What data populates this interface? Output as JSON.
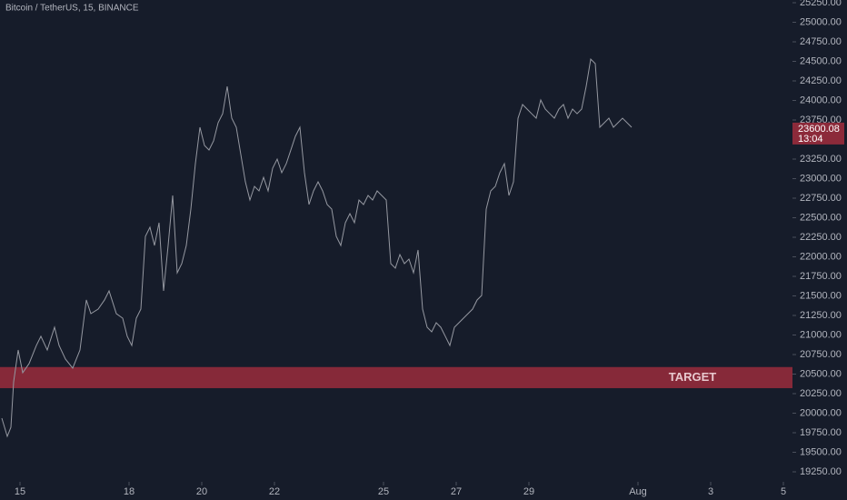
{
  "chart_data": {
    "type": "line",
    "title": "Bitcoin / TetherUS, 15, BINANCE",
    "color": "#9598a1",
    "x": [
      14.5,
      14.65,
      14.75,
      14.825,
      14.95,
      15.075,
      15.25,
      15.45,
      15.575,
      15.75,
      15.95,
      16.075,
      16.25,
      16.45,
      16.65,
      16.825,
      16.95,
      17.15,
      17.325,
      17.45,
      17.65,
      17.825,
      17.95,
      18.075,
      18.2,
      18.325,
      18.45,
      18.575,
      18.7,
      18.825,
      18.95,
      19.075,
      19.2,
      19.325,
      19.45,
      19.575,
      19.7,
      19.825,
      19.95,
      20.075,
      20.2,
      20.325,
      20.45,
      20.575,
      20.7,
      20.825,
      20.95,
      21.075,
      21.2,
      21.325,
      21.45,
      21.575,
      21.7,
      21.825,
      21.95,
      22.075,
      22.2,
      22.325,
      22.45,
      22.575,
      22.7,
      22.825,
      22.95,
      23.075,
      23.2,
      23.325,
      23.45,
      23.575,
      23.7,
      23.825,
      23.95,
      24.075,
      24.2,
      24.325,
      24.45,
      24.575,
      24.7,
      24.825,
      24.95,
      25.075,
      25.2,
      25.325,
      25.45,
      25.575,
      25.7,
      25.825,
      25.95,
      26.075,
      26.2,
      26.325,
      26.45,
      26.575,
      26.7,
      26.825,
      26.95,
      27.075,
      27.2,
      27.325,
      27.45,
      27.575,
      27.7,
      27.825,
      27.95,
      28.075,
      28.2,
      28.325,
      28.45,
      28.575,
      28.7,
      28.825,
      28.95,
      29.075,
      29.2,
      29.325,
      29.45,
      29.575,
      29.7,
      29.825,
      29.95,
      30.075,
      30.2,
      30.325,
      30.45,
      30.575,
      30.7,
      30.825,
      30.95,
      31.075,
      31.2,
      31.325,
      31.45,
      31.575,
      31.7,
      31.825
    ],
    "values": [
      19936,
      19703,
      19820,
      20401,
      20808,
      20517,
      20634,
      20866,
      20983,
      20808,
      21099,
      20866,
      20692,
      20576,
      20808,
      21448,
      21273,
      21331,
      21448,
      21564,
      21273,
      21215,
      20983,
      20866,
      21215,
      21331,
      22262,
      22378,
      22145,
      22436,
      21564,
      22145,
      22785,
      21796,
      21913,
      22145,
      22610,
      23192,
      23657,
      23424,
      23366,
      23483,
      23715,
      23831,
      24180,
      23773,
      23657,
      23308,
      22959,
      22727,
      22901,
      22843,
      23017,
      22843,
      23134,
      23250,
      23076,
      23192,
      23366,
      23541,
      23657,
      23076,
      22669,
      22843,
      22959,
      22843,
      22669,
      22610,
      22262,
      22145,
      22436,
      22552,
      22436,
      22727,
      22669,
      22785,
      22727,
      22843,
      22785,
      22727,
      21913,
      21855,
      22029,
      21913,
      21971,
      21796,
      22087,
      21331,
      21099,
      21041,
      21157,
      21099,
      20983,
      20866,
      21099,
      21157,
      21215,
      21273,
      21331,
      21448,
      21506,
      22610,
      22843,
      22901,
      23076,
      23192,
      22785,
      22959,
      23773,
      23948,
      23890,
      23831,
      23773,
      24006,
      23890,
      23831,
      23773,
      23890,
      23948,
      23773,
      23890,
      23831,
      23890,
      24180,
      24529,
      24471,
      23657,
      23715,
      23773,
      23657,
      23715,
      23773,
      23715,
      23657
    ],
    "xlim": [
      14.45,
      36.25
    ],
    "xticks": [
      15,
      18,
      20,
      22,
      25,
      27,
      29,
      {
        "value": 32,
        "label": "Aug"
      },
      {
        "value": 34,
        "label": "3"
      },
      {
        "value": 36,
        "label": "5"
      }
    ],
    "ylim": [
      19122,
      25285
    ],
    "yticks": [
      {
        "value": 19250,
        "label": "19250.00"
      },
      {
        "value": 19500,
        "label": "19500.00"
      },
      {
        "value": 19750,
        "label": "19750.00"
      },
      {
        "value": 20000,
        "label": "20000.00"
      },
      {
        "value": 20250,
        "label": "20250.00"
      },
      {
        "value": 20500,
        "label": "20500.00"
      },
      {
        "value": 20750,
        "label": "20750.00"
      },
      {
        "value": 21000,
        "label": "21000.00"
      },
      {
        "value": 21250,
        "label": "21250.00"
      },
      {
        "value": 21500,
        "label": "21500.00"
      },
      {
        "value": 21750,
        "label": "21750.00"
      },
      {
        "value": 22000,
        "label": "22000.00"
      },
      {
        "value": 22250,
        "label": "22250.00"
      },
      {
        "value": 22500,
        "label": "22500.00"
      },
      {
        "value": 22750,
        "label": "22750.00"
      },
      {
        "value": 23000,
        "label": "23000.00"
      },
      {
        "value": 23250,
        "label": "23250.00"
      },
      {
        "value": 23500,
        "label": "23500.00"
      },
      {
        "value": 23750,
        "label": "23750.00"
      },
      {
        "value": 24000,
        "label": "24000.00"
      },
      {
        "value": 24250,
        "label": "24250.00"
      },
      {
        "value": 24500,
        "label": "24500.00"
      },
      {
        "value": 24750,
        "label": "24750.00"
      },
      {
        "value": 25000,
        "label": "25000.00"
      },
      {
        "value": 25250,
        "label": "25250.00"
      }
    ],
    "target_zone": {
      "label": "TARGET",
      "range": [
        20320,
        20590
      ],
      "color": "#8c2a3a"
    },
    "last_price": {
      "value": 23600.08,
      "label": "23600.08",
      "countdown": "13:04",
      "color": "#8c2a3a"
    }
  }
}
